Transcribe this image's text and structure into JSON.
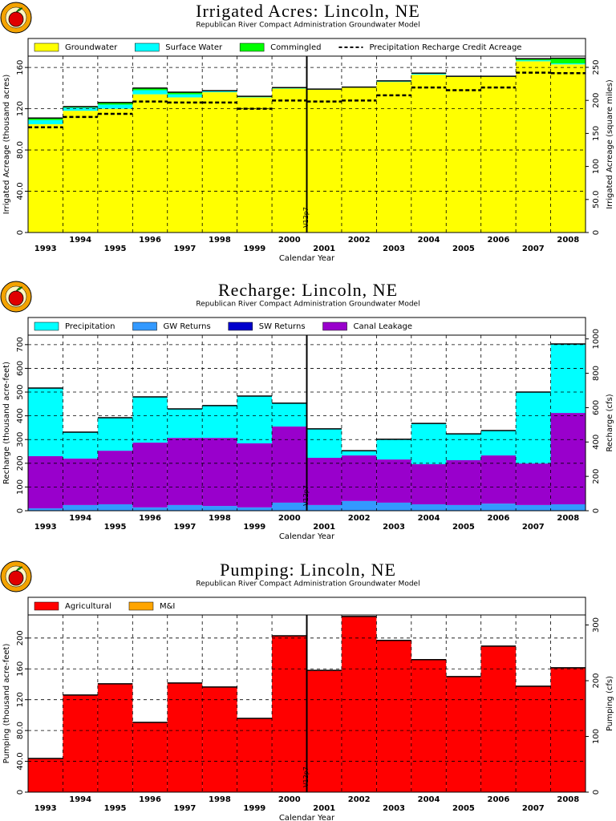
{
  "chart_data": [
    {
      "type": "bar",
      "stacked": true,
      "title": "Irrigated Acres: Lincoln, NE",
      "subtitle": "Republican River Compact Administration Groundwater Model",
      "ylabel": "Irrigated Acreage (thousand acres)",
      "y2label": "Irrigated Acreage (square miles)",
      "xlabel": "Calendar Year",
      "annotation": "V12p7",
      "categories": [
        "1993",
        "1994",
        "1995",
        "1996",
        "1997",
        "1998",
        "1999",
        "2000",
        "2001",
        "2002",
        "2003",
        "2004",
        "2005",
        "2006",
        "2007",
        "2008"
      ],
      "series": [
        {
          "name": "Groundwater",
          "color": "#ffff00",
          "values": [
            105,
            118,
            120,
            134,
            131,
            136,
            131,
            139.5,
            138.5,
            140.5,
            146,
            153,
            151,
            151,
            166,
            163
          ]
        },
        {
          "name": "Surface Water",
          "color": "#00ffff",
          "values": [
            4,
            3,
            4,
            4,
            3,
            1,
            0.5,
            0.5,
            0.3,
            0.3,
            0.5,
            1,
            0.3,
            0.3,
            1,
            1
          ]
        },
        {
          "name": "Commingled",
          "color": "#00ff00",
          "values": [
            2,
            1,
            2,
            2,
            2,
            0.5,
            0.5,
            0.5,
            0.2,
            0.2,
            0.5,
            0.5,
            0.2,
            0.2,
            1.5,
            5
          ]
        },
        {
          "name": "Precipitation Recharge Credit Acreage",
          "color": "#000000",
          "step": true,
          "dashed": true,
          "values": [
            102,
            112,
            115,
            127,
            126,
            126,
            120,
            128,
            127,
            128,
            133,
            140.6,
            138,
            140.6,
            155,
            154.5
          ]
        }
      ],
      "ylim": [
        0,
        171
      ],
      "yticks": [
        0,
        {
          "value": 40,
          "label": "40.0"
        },
        {
          "value": 80,
          "label": "80.0"
        },
        120,
        160
      ],
      "y2lim": [
        0,
        267
      ],
      "y2ticks": [
        0,
        {
          "value": 50,
          "label": "50.0"
        },
        100,
        150,
        200,
        250
      ],
      "grid": true
    },
    {
      "type": "bar",
      "stacked": true,
      "title": "Recharge: Lincoln, NE",
      "subtitle": "Republican River Compact Administration Groundwater Model",
      "ylabel": "Recharge (thousand acre-feet)",
      "y2label": "Recharge (cfs)",
      "xlabel": "Calendar Year",
      "annotation": "V12p7",
      "categories": [
        "1993",
        "1994",
        "1995",
        "1996",
        "1997",
        "1998",
        "1999",
        "2000",
        "2001",
        "2002",
        "2003",
        "2004",
        "2005",
        "2006",
        "2007",
        "2008"
      ],
      "series": [
        {
          "name": "GW Returns",
          "color": "#3399ff",
          "values": [
            10,
            24,
            27,
            14,
            24,
            20,
            14,
            34,
            24,
            41,
            34,
            27,
            24,
            30,
            24,
            27
          ]
        },
        {
          "name": "SW Returns",
          "color": "#0000cc",
          "values": [
            0,
            0,
            0,
            0,
            0,
            0,
            0,
            0,
            0,
            0,
            0,
            0,
            0,
            0,
            0,
            0
          ]
        },
        {
          "name": "Canal Leakage",
          "color": "#9900cc",
          "values": [
            220,
            196,
            226,
            273,
            283,
            287,
            270,
            321,
            199,
            192,
            182,
            169,
            189,
            203,
            175,
            385
          ]
        },
        {
          "name": "Precipitation",
          "color": "#00ffff",
          "values": [
            287,
            111,
            139,
            193,
            122,
            136,
            199,
            98,
            122,
            20,
            85,
            172,
            111,
            105,
            301,
            291
          ]
        }
      ],
      "legend_order": [
        3,
        0,
        1,
        2
      ],
      "ylim": [
        0,
        740
      ],
      "yticks": [
        0,
        100,
        200,
        300,
        400,
        500,
        600,
        700
      ],
      "y2lim": [
        0,
        1022
      ],
      "y2ticks": [
        0,
        200,
        400,
        600,
        800,
        1000
      ],
      "grid": true
    },
    {
      "type": "bar",
      "stacked": true,
      "title": "Pumping: Lincoln, NE",
      "subtitle": "Republican River Compact Administration Groundwater Model",
      "ylabel": "Pumping (thousand acre-feet)",
      "y2label": "Pumping (cfs)",
      "xlabel": "Calendar Year",
      "annotation": "V12p7",
      "categories": [
        "1993",
        "1994",
        "1995",
        "1996",
        "1997",
        "1998",
        "1999",
        "2000",
        "2001",
        "2002",
        "2003",
        "2004",
        "2005",
        "2006",
        "2007",
        "2008"
      ],
      "series": [
        {
          "name": "Agricultural",
          "color": "#ff0000",
          "values": [
            43.7,
            126,
            140.6,
            90.6,
            141.7,
            136.5,
            95.8,
            203,
            158,
            228,
            197,
            172,
            150,
            189.6,
            137.5,
            161.5
          ]
        },
        {
          "name": "M&I",
          "color": "#ffa500",
          "values": [
            0,
            0,
            0,
            0,
            0,
            0,
            0,
            0,
            0,
            0,
            0,
            0,
            0,
            0,
            0,
            0
          ]
        }
      ],
      "ylim": [
        0,
        230
      ],
      "yticks": [
        0,
        {
          "value": 40,
          "label": "40.0"
        },
        {
          "value": 80,
          "label": "80.0"
        },
        120,
        160,
        200
      ],
      "y2lim": [
        0,
        318
      ],
      "y2ticks": [
        0,
        100,
        200,
        300
      ],
      "grid": true
    }
  ]
}
